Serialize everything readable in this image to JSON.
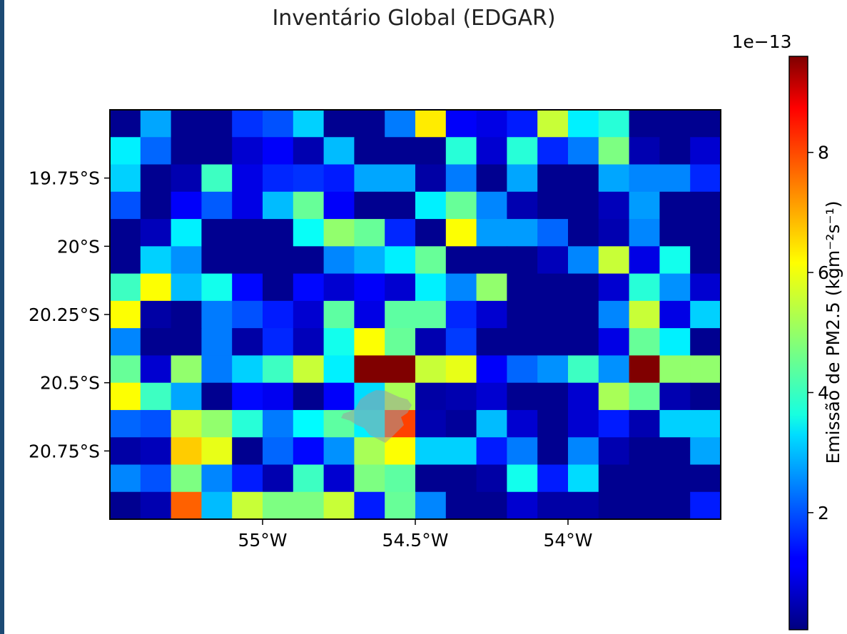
{
  "chart_data": {
    "type": "heatmap",
    "title": "Inventário Global (EDGAR)",
    "colorbar": {
      "label": "Emissão de PM2.5 (kgm⁻²s⁻¹)",
      "exponent_label": "1e−13",
      "colormap": "jet",
      "range": [
        0.05,
        9.6
      ],
      "ticks": [
        2,
        4,
        6,
        8
      ],
      "tick_labels": [
        "2",
        "4",
        "6",
        "8"
      ]
    },
    "x_ticks": [
      {
        "value": -55.0,
        "label": "55°W"
      },
      {
        "value": -54.5,
        "label": "54.5°W"
      },
      {
        "value": -54.0,
        "label": "54°W"
      }
    ],
    "y_ticks": [
      {
        "value": -19.75,
        "label": "19.75°S"
      },
      {
        "value": -20.0,
        "label": "20°S"
      },
      {
        "value": -20.25,
        "label": "20.25°S"
      },
      {
        "value": -20.5,
        "label": "20.5°S"
      },
      {
        "value": -20.75,
        "label": "20.75°S"
      }
    ],
    "xlim": [
      -55.5,
      -53.5
    ],
    "ylim": [
      -21.0,
      -19.5
    ],
    "cell_size_deg": 0.1,
    "row_order": "north_to_south",
    "values": [
      [
        0.2,
        2.8,
        0.2,
        0.2,
        1.7,
        2.0,
        3.2,
        0.2,
        0.2,
        2.4,
        6.2,
        1.2,
        1.0,
        1.5,
        5.5,
        3.5,
        4.0,
        0.2,
        0.2,
        0.2
      ],
      [
        3.5,
        2.2,
        0.2,
        0.2,
        0.8,
        1.2,
        0.5,
        3.0,
        0.2,
        0.2,
        0.2,
        4.0,
        0.8,
        4.0,
        1.6,
        2.4,
        4.8,
        0.5,
        0.2,
        0.8
      ],
      [
        3.2,
        0.2,
        0.5,
        4.2,
        1.0,
        1.6,
        1.7,
        1.5,
        2.8,
        2.8,
        0.4,
        2.4,
        0.2,
        2.8,
        0.2,
        0.2,
        2.8,
        2.5,
        2.5,
        1.6
      ],
      [
        2.0,
        0.2,
        1.2,
        2.1,
        1.0,
        3.0,
        4.6,
        1.2,
        0.2,
        0.2,
        3.5,
        4.6,
        2.5,
        0.5,
        0.2,
        0.2,
        0.6,
        2.7,
        0.2,
        0.2
      ],
      [
        0.2,
        0.6,
        3.5,
        0.2,
        0.2,
        0.2,
        3.7,
        5.0,
        4.6,
        1.6,
        0.2,
        6.0,
        2.7,
        2.7,
        2.2,
        0.2,
        0.5,
        2.5,
        0.2,
        0.2
      ],
      [
        0.2,
        3.2,
        2.6,
        0.2,
        0.2,
        0.2,
        0.2,
        2.5,
        2.9,
        3.5,
        4.6,
        0.2,
        0.2,
        0.2,
        0.6,
        2.5,
        5.5,
        1.0,
        3.8,
        0.2
      ],
      [
        4.2,
        6.0,
        3.0,
        3.8,
        1.3,
        0.2,
        1.3,
        0.8,
        1.2,
        0.8,
        3.5,
        2.5,
        5.0,
        0.2,
        0.2,
        0.2,
        0.8,
        4.0,
        2.6,
        0.8
      ],
      [
        6.0,
        0.4,
        0.2,
        2.4,
        2.0,
        1.5,
        0.8,
        4.5,
        1.0,
        4.5,
        4.5,
        1.6,
        0.8,
        0.2,
        0.2,
        0.2,
        2.5,
        5.5,
        1.0,
        3.2
      ],
      [
        2.5,
        0.2,
        0.2,
        2.4,
        0.4,
        1.6,
        0.6,
        3.8,
        6.0,
        4.6,
        0.5,
        1.8,
        0.2,
        0.2,
        0.2,
        0.2,
        1.0,
        4.6,
        3.5,
        0.2
      ],
      [
        4.6,
        0.8,
        5.0,
        2.4,
        3.2,
        4.2,
        5.5,
        3.5,
        9.6,
        9.6,
        5.5,
        5.8,
        1.2,
        2.2,
        2.6,
        4.2,
        2.6,
        9.6,
        5.0,
        5.0
      ],
      [
        6.0,
        4.2,
        2.8,
        0.2,
        1.3,
        1.1,
        0.2,
        1.2,
        3.3,
        5.2,
        0.4,
        0.5,
        0.8,
        0.2,
        0.2,
        0.8,
        5.2,
        4.6,
        0.5,
        0.2
      ],
      [
        2.2,
        2.0,
        5.5,
        5.0,
        4.0,
        2.4,
        3.6,
        4.5,
        3.5,
        7.8,
        0.5,
        0.3,
        3.0,
        0.8,
        0.2,
        0.8,
        1.5,
        0.5,
        3.2,
        3.2
      ],
      [
        0.4,
        0.6,
        6.5,
        5.8,
        0.2,
        2.2,
        1.3,
        2.6,
        5.2,
        6.0,
        3.2,
        3.2,
        1.5,
        2.4,
        0.2,
        2.5,
        0.5,
        0.2,
        0.2,
        2.8
      ],
      [
        2.5,
        2.0,
        4.8,
        2.5,
        1.5,
        0.5,
        4.2,
        0.8,
        4.8,
        4.5,
        0.2,
        0.2,
        0.4,
        3.8,
        1.5,
        3.3,
        0.2,
        0.2,
        0.2,
        0.2
      ],
      [
        0.2,
        0.5,
        7.5,
        3.0,
        5.5,
        4.8,
        4.8,
        5.5,
        1.5,
        4.6,
        2.5,
        0.2,
        0.2,
        0.8,
        0.4,
        0.4,
        0.2,
        0.2,
        0.2,
        1.5
      ]
    ]
  }
}
